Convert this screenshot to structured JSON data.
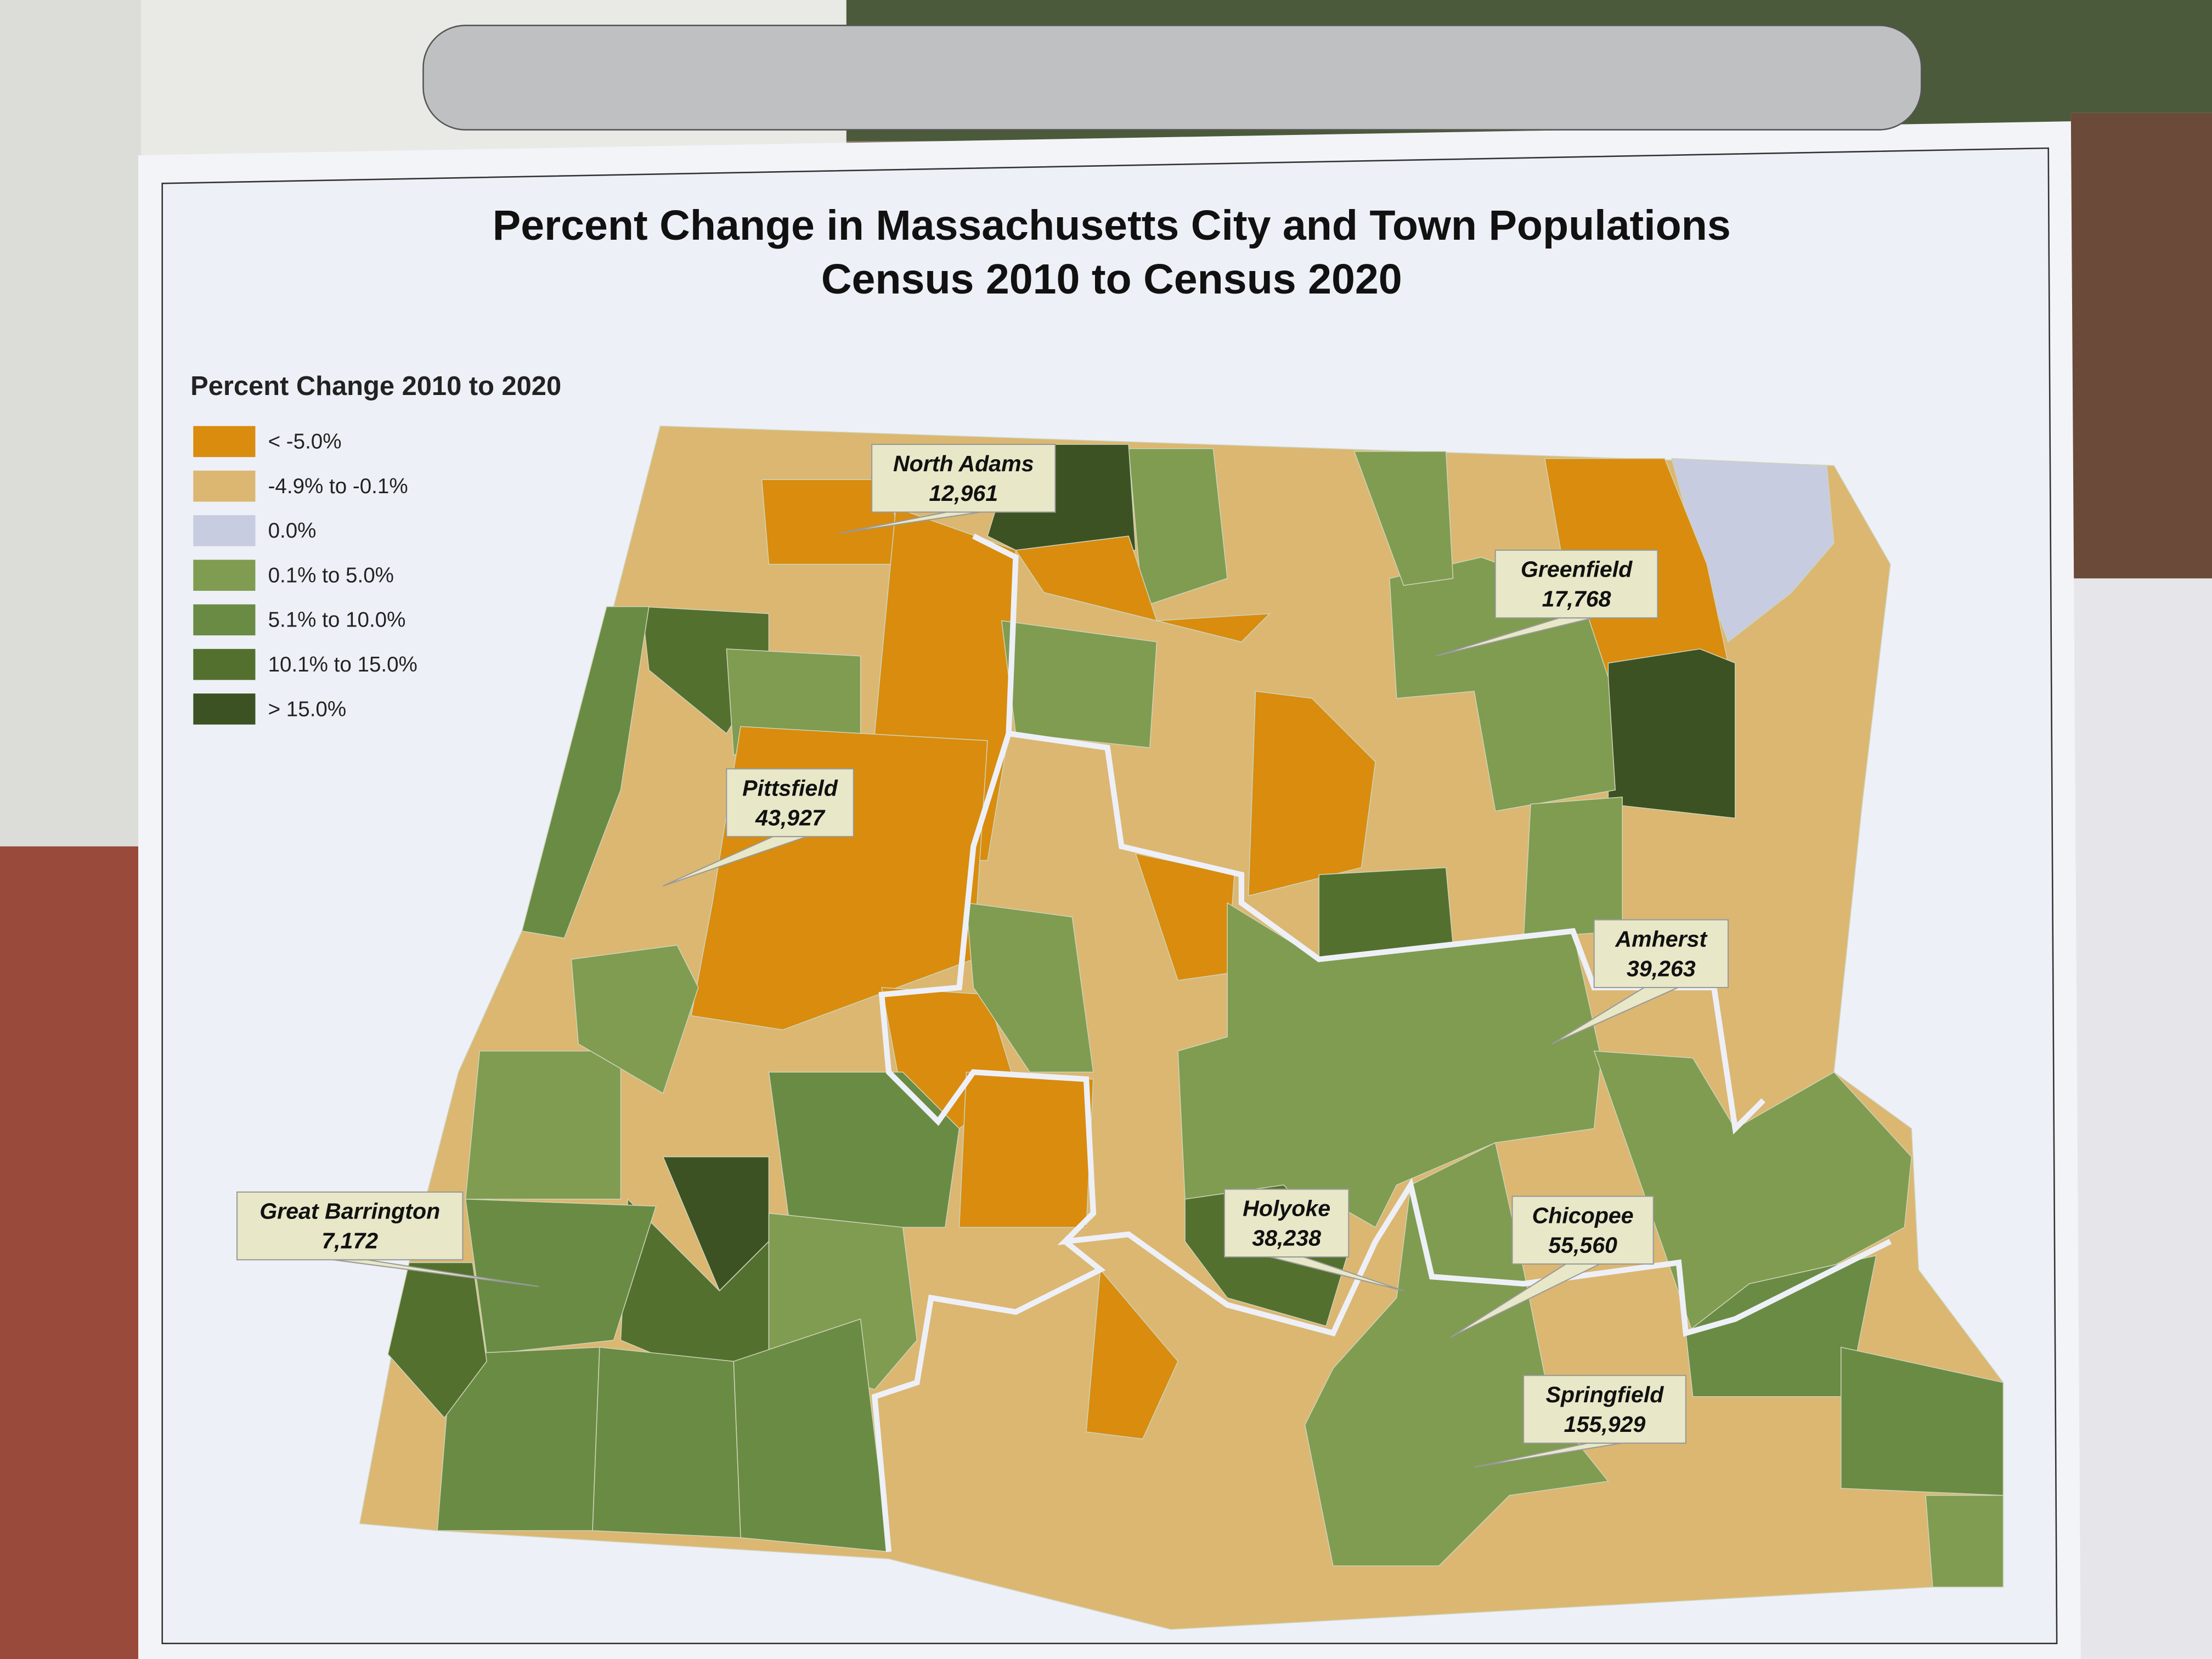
{
  "title": {
    "line1": "Percent Change in Massachusetts City and Town Populations",
    "line2": "Census 2010 to Census 2020"
  },
  "legend": {
    "title": "Percent Change 2010 to 2020",
    "items": [
      {
        "label": "< -5.0%",
        "color": "#d98c0e"
      },
      {
        "label": "-4.9% to -0.1%",
        "color": "#dbb772"
      },
      {
        "label": "0.0%",
        "color": "#c8cce0"
      },
      {
        "label": "0.1% to 5.0%",
        "color": "#7f9c51"
      },
      {
        "label": "5.1% to 10.0%",
        "color": "#6a8b44"
      },
      {
        "label": "10.1% to 15.0%",
        "color": "#53702f"
      },
      {
        "label": "> 15.0%",
        "color": "#3c5223"
      }
    ]
  },
  "places": [
    {
      "name": "North Adams",
      "population": "12,961"
    },
    {
      "name": "Greenfield",
      "population": "17,768"
    },
    {
      "name": "Pittsfield",
      "population": "43,927"
    },
    {
      "name": "Amherst",
      "population": "39,263"
    },
    {
      "name": "Great Barrington",
      "population": "7,172"
    },
    {
      "name": "Holyoke",
      "population": "38,238"
    },
    {
      "name": "Chicopee",
      "population": "55,560"
    },
    {
      "name": "Springfield",
      "population": "155,929"
    }
  ]
}
